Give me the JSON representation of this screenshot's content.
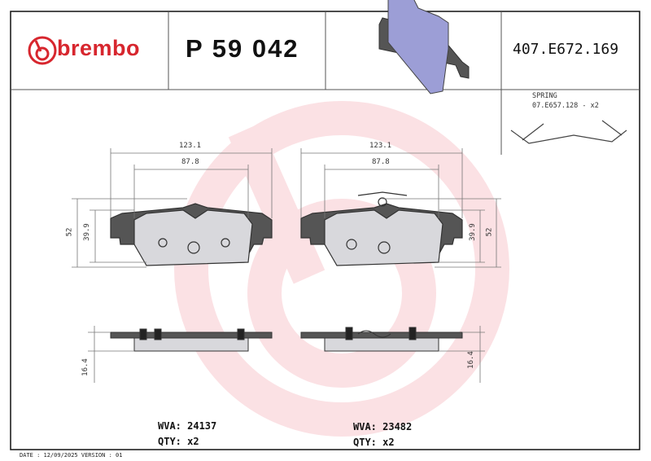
{
  "header": {
    "brand": "brembo",
    "part_number": "P 59 042",
    "reference": "407.E672.169"
  },
  "accessory": {
    "label": "SPRING",
    "code": "07.E657.128 - x2"
  },
  "dimensions": {
    "left": {
      "width_total": "123.1",
      "width_lining": "87.8",
      "height_total": "52",
      "height_lining": "39.9",
      "thickness": "16.4"
    },
    "right": {
      "width_total": "123.1",
      "width_lining": "87.8",
      "height_total": "52",
      "height_lining": "39.9",
      "thickness": "16.4"
    }
  },
  "pads": [
    {
      "wva": "WVA: 24137",
      "qty": "QTY: x2"
    },
    {
      "wva": "WVA: 23482",
      "qty": "QTY: x2"
    }
  ],
  "footer": "DATE : 12/09/2025 VERSION : 01",
  "colors": {
    "brand": "#d7262e",
    "watermark": "#fbe3e5",
    "pad_lining": "#9c9ed6"
  }
}
